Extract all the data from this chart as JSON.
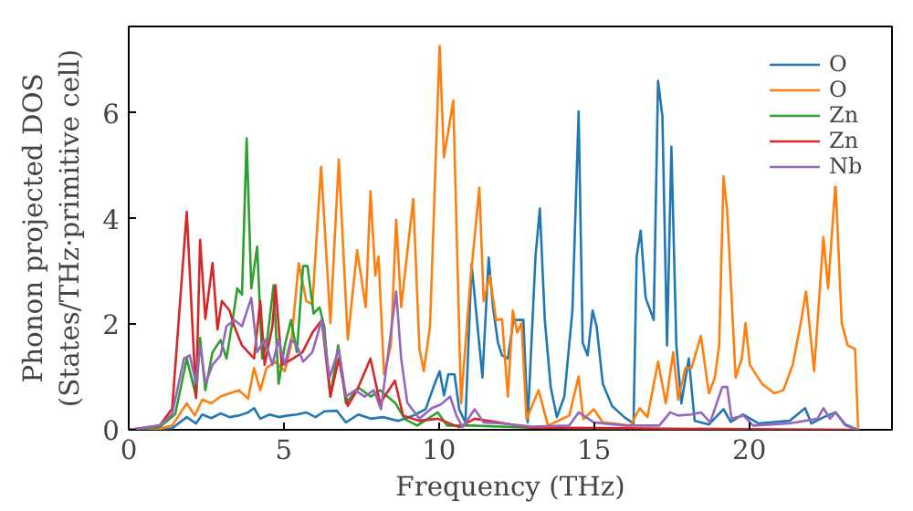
{
  "chart_data": {
    "type": "line",
    "xlabel": "Frequency (THz)",
    "ylabel": "Phonon projected DOS\n(States/THz·primitive cell)",
    "xlim": [
      0,
      24.6
    ],
    "ylim": [
      0,
      7.64
    ],
    "xticks": [
      0,
      5,
      10,
      15,
      20
    ],
    "yticks": [
      0,
      2,
      4,
      6
    ],
    "legend": "top right",
    "grid": false,
    "series": [
      {
        "name": "O",
        "color": "#1f77b4",
        "x": [
          0,
          1.0,
          1.4,
          1.87,
          2.17,
          2.37,
          2.66,
          2.96,
          3.25,
          3.55,
          3.85,
          4.04,
          4.24,
          4.54,
          4.83,
          5.13,
          5.42,
          5.72,
          6.02,
          6.31,
          6.71,
          7.0,
          7.4,
          7.8,
          8.2,
          8.68,
          9.17,
          9.57,
          9.86,
          10.02,
          10.16,
          10.3,
          10.5,
          10.65,
          10.85,
          11.05,
          11.4,
          11.6,
          11.74,
          11.9,
          12.03,
          12.22,
          12.4,
          12.72,
          12.86,
          13.11,
          13.25,
          13.41,
          13.6,
          13.8,
          14.04,
          14.3,
          14.5,
          14.63,
          14.79,
          14.95,
          15.08,
          15.28,
          15.58,
          15.97,
          16.27,
          16.37,
          16.5,
          16.66,
          16.92,
          17.06,
          17.2,
          17.35,
          17.49,
          17.65,
          17.81,
          18.05,
          18.24,
          18.7,
          19.17,
          19.4,
          19.8,
          20.3,
          21.3,
          21.8,
          22.0,
          22.4,
          22.78,
          23.1,
          23.5
        ],
        "values": [
          0,
          0.02,
          0.03,
          0.24,
          0.12,
          0.29,
          0.22,
          0.31,
          0.24,
          0.27,
          0.33,
          0.41,
          0.21,
          0.29,
          0.24,
          0.27,
          0.29,
          0.33,
          0.24,
          0.35,
          0.36,
          0.14,
          0.29,
          0.21,
          0.24,
          0.17,
          0.27,
          0.39,
          0.87,
          1.11,
          0.65,
          1.05,
          1.05,
          0.39,
          0.14,
          3.14,
          0.99,
          3.26,
          2.32,
          1.65,
          1.41,
          1.35,
          2.08,
          2.08,
          0.14,
          3.28,
          4.19,
          2.08,
          0.81,
          0.24,
          0.63,
          2.26,
          6.03,
          1.65,
          1.41,
          2.26,
          1.96,
          0.87,
          0.45,
          0.24,
          0.12,
          3.28,
          3.77,
          2.5,
          2.08,
          6.61,
          5.94,
          1.6,
          5.36,
          1.6,
          0.5,
          1.35,
          0.17,
          0.1,
          0.39,
          0.15,
          0.29,
          0.12,
          0.17,
          0.41,
          0.12,
          0.24,
          0.33,
          0.1,
          0
        ]
      },
      {
        "name": "O",
        "color": "#ff7f0e",
        "x": [
          0,
          1.0,
          1.4,
          1.87,
          2.13,
          2.37,
          2.66,
          2.96,
          3.25,
          3.55,
          3.85,
          4.04,
          4.24,
          4.44,
          4.73,
          5.03,
          5.23,
          5.48,
          5.72,
          5.92,
          6.2,
          6.5,
          6.77,
          7.06,
          7.36,
          7.64,
          7.79,
          7.95,
          8.05,
          8.23,
          8.45,
          8.62,
          8.78,
          9.17,
          9.37,
          9.51,
          9.71,
          10.02,
          10.16,
          10.46,
          10.71,
          10.99,
          11.3,
          11.44,
          11.64,
          11.84,
          12.03,
          12.22,
          12.38,
          12.52,
          12.66,
          12.82,
          13.21,
          13.51,
          14.2,
          14.5,
          14.65,
          14.99,
          15.28,
          16.17,
          16.47,
          16.72,
          17.06,
          17.31,
          17.55,
          17.71,
          17.94,
          18.14,
          18.44,
          18.7,
          18.89,
          19.03,
          19.17,
          19.29,
          19.56,
          19.76,
          19.88,
          20.02,
          20.41,
          20.81,
          21.1,
          21.4,
          21.64,
          21.83,
          22.09,
          22.39,
          22.54,
          22.78,
          22.98,
          23.17,
          23.41,
          23.51
        ],
        "values": [
          0,
          0.02,
          0.08,
          0.5,
          0.27,
          0.57,
          0.5,
          0.63,
          0.69,
          0.75,
          0.59,
          1.17,
          0.75,
          1.17,
          1.29,
          1.11,
          1.6,
          3.16,
          2.44,
          2.38,
          4.98,
          2.02,
          5.12,
          1.71,
          3.4,
          2.32,
          4.52,
          2.92,
          3.28,
          1.05,
          1.6,
          3.98,
          2.32,
          4.37,
          1.53,
          1.11,
          1.96,
          7.27,
          5.16,
          6.24,
          0.5,
          2.68,
          4.59,
          2.44,
          2.92,
          2.08,
          2.1,
          0.63,
          2.26,
          1.84,
          2.02,
          0.2,
          0.75,
          0.08,
          0.27,
          1.01,
          0.2,
          0.39,
          0.14,
          0.08,
          0.41,
          0.24,
          1.29,
          0.5,
          1.47,
          0.57,
          1.17,
          1.17,
          1.78,
          0.69,
          0.99,
          1.6,
          4.8,
          4.13,
          0.99,
          1.35,
          2.02,
          1.23,
          0.87,
          0.69,
          0.75,
          1.23,
          1.96,
          2.62,
          1.11,
          3.65,
          2.68,
          4.68,
          2.02,
          1.6,
          1.53,
          0
        ]
      },
      {
        "name": "Zn",
        "color": "#2ca02c",
        "x": [
          0,
          1.0,
          1.5,
          1.87,
          2.17,
          2.3,
          2.47,
          2.7,
          2.96,
          3.15,
          3.35,
          3.5,
          3.65,
          3.8,
          3.95,
          4.14,
          4.3,
          4.44,
          4.67,
          4.83,
          5.03,
          5.23,
          5.42,
          5.62,
          5.76,
          5.96,
          6.15,
          6.3,
          6.5,
          6.75,
          7.0,
          7.4,
          7.8,
          8.1,
          8.6,
          8.9,
          9.3,
          9.96,
          10.26,
          11.05,
          13.0,
          16.0
        ],
        "values": [
          0,
          0.05,
          0.3,
          1.35,
          0.63,
          1.74,
          0.75,
          1.47,
          1.7,
          1.35,
          2.08,
          2.68,
          2.56,
          5.52,
          2.68,
          3.47,
          1.35,
          1.6,
          2.74,
          0.87,
          1.6,
          2.08,
          1.47,
          3.1,
          3.1,
          2.2,
          2.32,
          1.96,
          0.63,
          1.6,
          0.5,
          0.8,
          0.63,
          0.75,
          0.5,
          0.2,
          0.08,
          0.33,
          0.08,
          0.08,
          0.04,
          0.03
        ]
      },
      {
        "name": "Zn",
        "color": "#d62728",
        "x": [
          0,
          1.0,
          1.4,
          1.87,
          2.17,
          2.3,
          2.47,
          2.7,
          2.86,
          3.0,
          3.25,
          3.4,
          3.65,
          3.85,
          4.04,
          4.24,
          4.38,
          4.63,
          4.73,
          4.93,
          5.3,
          5.6,
          5.92,
          6.22,
          6.5,
          6.77,
          7.06,
          7.36,
          7.79,
          8.1,
          8.58,
          8.84,
          9.37,
          9.96,
          10.65,
          11.15,
          13.0,
          16.0,
          20.0,
          23.5
        ],
        "values": [
          0,
          0.08,
          0.4,
          4.13,
          0.6,
          3.6,
          2.1,
          3.16,
          1.9,
          2.44,
          2.26,
          1.96,
          1.6,
          1.47,
          1.35,
          2.44,
          1.23,
          1.96,
          2.74,
          1.23,
          1.35,
          1.47,
          1.84,
          2.08,
          0.63,
          1.35,
          0.45,
          0.75,
          1.35,
          0.5,
          0.93,
          0.27,
          0.17,
          0.21,
          0.05,
          0.21,
          0.04,
          0.03,
          0.01,
          0
        ]
      },
      {
        "name": "Nb",
        "color": "#9467bd",
        "x": [
          0,
          1.0,
          1.4,
          1.78,
          1.97,
          2.17,
          2.3,
          2.47,
          2.7,
          2.96,
          3.15,
          3.4,
          3.65,
          3.95,
          4.14,
          4.38,
          4.63,
          4.83,
          5.03,
          5.23,
          5.42,
          5.62,
          5.92,
          6.22,
          6.47,
          6.77,
          7.0,
          7.3,
          7.6,
          7.9,
          8.13,
          8.62,
          8.78,
          8.98,
          9.37,
          9.77,
          10.06,
          10.36,
          10.56,
          10.76,
          11.15,
          11.44,
          12.0,
          13.0,
          14.2,
          14.5,
          14.99,
          16.0,
          17.1,
          17.45,
          17.7,
          18.14,
          18.44,
          18.74,
          19.13,
          19.29,
          19.43,
          19.82,
          20.12,
          21.3,
          22.2,
          22.39,
          22.6,
          22.78,
          23.1,
          23.5
        ],
        "values": [
          0,
          0.08,
          0.3,
          1.35,
          1.41,
          0.87,
          1.6,
          0.87,
          1.23,
          1.41,
          1.96,
          2.08,
          1.96,
          2.5,
          1.47,
          1.71,
          1.23,
          1.71,
          1.23,
          1.71,
          1.6,
          1.29,
          1.47,
          2.08,
          0.99,
          1.53,
          0.63,
          0.75,
          0.63,
          0.75,
          0.39,
          2.62,
          1.35,
          0.51,
          0.21,
          0.41,
          0.48,
          0.63,
          0.27,
          0.05,
          0.39,
          0.14,
          0.12,
          0.06,
          0.08,
          0.33,
          0.14,
          0.08,
          0.08,
          0.33,
          0.27,
          0.29,
          0.33,
          0.14,
          0.81,
          0.81,
          0.21,
          0.27,
          0.08,
          0.12,
          0.21,
          0.41,
          0.21,
          0.33,
          0.08,
          0
        ]
      }
    ]
  }
}
